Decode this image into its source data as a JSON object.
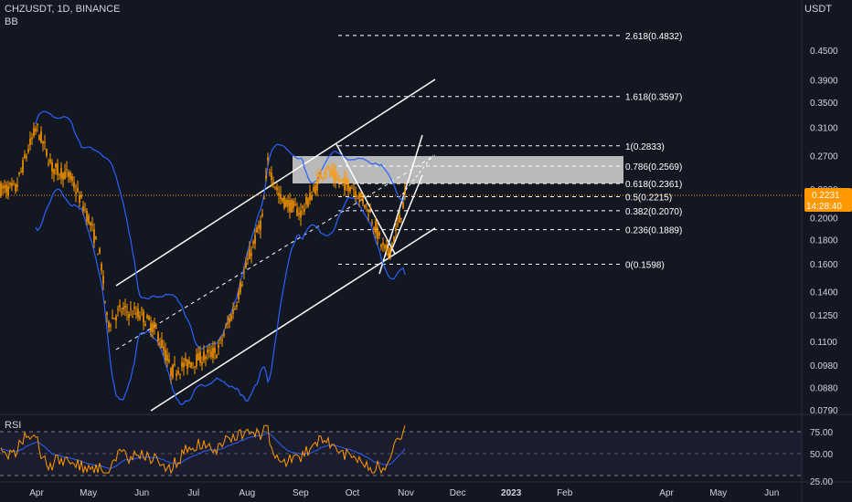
{
  "header": {
    "symbol": "CHZUSDT, 1D, BINANCE",
    "indicator": "BB",
    "unit": "USDT"
  },
  "price_axis": [
    "0.4500",
    "0.3900",
    "0.3500",
    "0.3100",
    "0.2700",
    "0.2300",
    "0.2000",
    "0.1800",
    "0.1600",
    "0.1400",
    "0.1250",
    "0.1100",
    "0.0980",
    "0.0880",
    "0.0790"
  ],
  "current_price": {
    "value": "0.2231",
    "countdown": "14:28:40",
    "color": "#ff9800"
  },
  "fib_levels": [
    {
      "ratio": "2.618",
      "price": 0.4832,
      "label": "2.618(0.4832)"
    },
    {
      "ratio": "1.618",
      "price": 0.3597,
      "label": "1.618(0.3597)"
    },
    {
      "ratio": "1",
      "price": 0.2833,
      "label": "1(0.2833)"
    },
    {
      "ratio": "0.786",
      "price": 0.2569,
      "label": "0.786(0.2569)"
    },
    {
      "ratio": "0.618",
      "price": 0.2361,
      "label": "0.618(0.2361)"
    },
    {
      "ratio": "0.5",
      "price": 0.2215,
      "label": "0.5(0.2215)"
    },
    {
      "ratio": "0.382",
      "price": 0.207,
      "label": "0.382(0.2070)"
    },
    {
      "ratio": "0.236",
      "price": 0.1889,
      "label": "0.236(0.1889)"
    },
    {
      "ratio": "0",
      "price": 0.1598,
      "label": "0(0.1598)"
    }
  ],
  "time_axis": [
    "Apr",
    "May",
    "Jun",
    "Jul",
    "Aug",
    "Sep",
    "Oct",
    "Nov",
    "Dec",
    "2023",
    "Feb",
    "Apr",
    "May",
    "Jun"
  ],
  "rsi": {
    "label": "RSI",
    "levels": [
      "75.00",
      "50.00",
      "25.00"
    ]
  },
  "colors": {
    "background": "#131722",
    "candle": "#ff9800",
    "bollinger": "#2962ff",
    "rsi_line": "#ff9800",
    "rsi_ma": "#2962ff",
    "zone": "#d6d6d6"
  },
  "chart_data": {
    "type": "line",
    "title": "CHZUSDT, 1D, BINANCE",
    "scale": "log",
    "ylim": [
      0.079,
      0.49
    ],
    "series": [
      {
        "name": "CHZUSDT",
        "x": [
          "2022-03-20",
          "2022-04-01",
          "2022-04-10",
          "2022-04-20",
          "2022-05-01",
          "2022-05-08",
          "2022-05-12",
          "2022-05-20",
          "2022-06-01",
          "2022-06-10",
          "2022-06-18",
          "2022-07-01",
          "2022-07-15",
          "2022-07-25",
          "2022-08-01",
          "2022-08-10",
          "2022-08-13",
          "2022-08-20",
          "2022-09-01",
          "2022-09-08",
          "2022-09-15",
          "2022-09-22",
          "2022-10-01",
          "2022-10-10",
          "2022-10-18",
          "2022-10-22",
          "2022-10-28",
          "2022-11-01"
        ],
        "values": [
          0.23,
          0.31,
          0.255,
          0.245,
          0.2,
          0.165,
          0.12,
          0.128,
          0.125,
          0.115,
          0.095,
          0.1,
          0.105,
          0.13,
          0.16,
          0.2,
          0.26,
          0.22,
          0.205,
          0.225,
          0.255,
          0.24,
          0.233,
          0.21,
          0.175,
          0.168,
          0.195,
          0.226
        ]
      }
    ],
    "fibonacci": {
      "high": 0.2833,
      "low": 0.1598
    }
  }
}
